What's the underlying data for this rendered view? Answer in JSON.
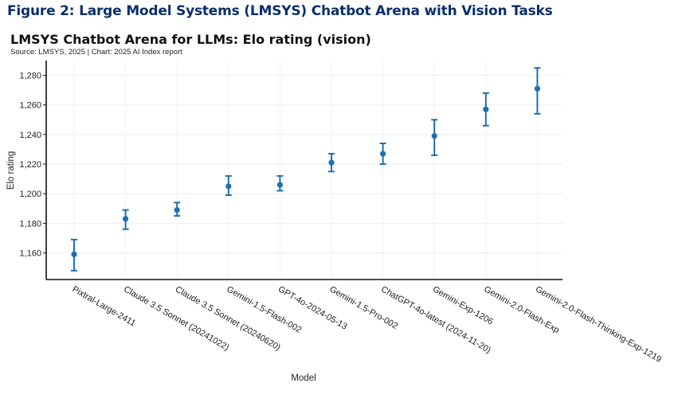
{
  "figure": {
    "caption": "Figure 2: Large Model Systems (LMSYS) Chatbot Arena with Vision Tasks"
  },
  "chart_data": {
    "type": "scatter",
    "title": "LMSYS Chatbot Arena for LLMs: Elo rating (vision)",
    "subtitle": "Source: LMSYS, 2025 | Chart: 2025 AI Index report",
    "xlabel": "Model",
    "ylabel": "Elo rating",
    "ylim": [
      1142,
      1290
    ],
    "yticks": [
      1160,
      1180,
      1200,
      1220,
      1240,
      1260,
      1280
    ],
    "grid": true,
    "color": "#1f6fb0",
    "categories": [
      "Pixtral-Large-2411",
      "Claude 3.5 Sonnet (20241022)",
      "Claude 3.5 Sonnet (20240620)",
      "Gemini-1.5-Flash-002",
      "GPT-4o-2024-05-13",
      "Gemini-1.5-Pro-002",
      "ChatGPT-4o-latest (2024-11-20)",
      "Gemini-Exp-1206",
      "Gemini-2.0-Flash-Exp",
      "Gemini-2.0-Flash-Thinking-Exp-1219"
    ],
    "values": [
      1159,
      1183,
      1189,
      1205,
      1206,
      1221,
      1227,
      1239,
      1257,
      1271
    ],
    "error_low": [
      1148,
      1176,
      1185,
      1199,
      1202,
      1215,
      1220,
      1226,
      1246,
      1254
    ],
    "error_high": [
      1169,
      1189,
      1194,
      1212,
      1212,
      1227,
      1234,
      1250,
      1268,
      1285
    ]
  }
}
